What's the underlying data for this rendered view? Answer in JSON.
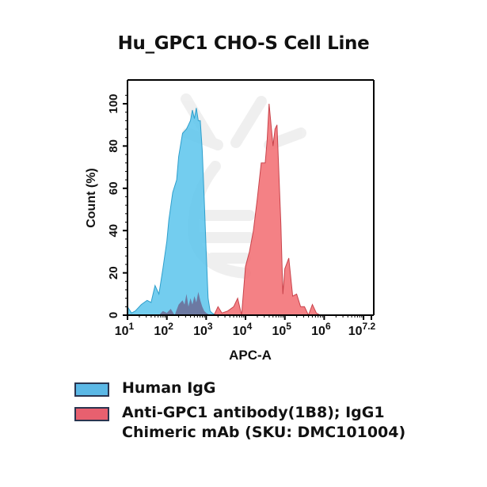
{
  "chart_data": {
    "type": "area",
    "title": "Hu_GPC1 CHO-S Cell Line",
    "xlabel": "APC-A",
    "ylabel": "Count  (%)",
    "xscale": "log",
    "xlim": [
      1,
      7.2
    ],
    "ylim": [
      0,
      108
    ],
    "x_tick_labels": [
      "10^1",
      "10^2",
      "10^3",
      "10^4",
      "10^5",
      "10^6",
      "10^7.2"
    ],
    "y_tick_labels": [
      "0",
      "20",
      "40",
      "60",
      "80",
      "100"
    ],
    "grid": false,
    "legend_position": "below",
    "series": [
      {
        "name": "Human IgG",
        "color": "#5bc4ec",
        "x_log10": [
          1.0,
          1.1,
          1.2,
          1.35,
          1.5,
          1.6,
          1.7,
          1.8,
          1.9,
          2.0,
          2.05,
          2.15,
          2.25,
          2.3,
          2.4,
          2.5,
          2.55,
          2.6,
          2.65,
          2.7,
          2.75,
          2.8,
          2.85,
          2.9,
          2.95,
          3.0,
          3.05,
          3.1,
          3.15,
          3.25
        ],
        "values": [
          4,
          1,
          2,
          5,
          7,
          6,
          14,
          10,
          22,
          35,
          45,
          58,
          64,
          75,
          86,
          88,
          90,
          92,
          97,
          93,
          98,
          92,
          92,
          78,
          55,
          30,
          8,
          2,
          1,
          0
        ]
      },
      {
        "name": "Anti-GPC1 antibody(1B8); IgG1 Chimeric mAb (SKU: DMC101004)",
        "color": "#f26b70",
        "x_log10": [
          3.2,
          3.3,
          3.4,
          3.55,
          3.7,
          3.8,
          3.9,
          4.0,
          4.1,
          4.2,
          4.3,
          4.4,
          4.5,
          4.55,
          4.6,
          4.7,
          4.75,
          4.8,
          4.85,
          4.9,
          4.95,
          5.0,
          5.1,
          5.2,
          5.3,
          5.4,
          5.5,
          5.6,
          5.7,
          5.8,
          5.9
        ],
        "values": [
          0,
          4,
          1,
          2,
          4,
          8,
          0,
          23,
          30,
          40,
          55,
          72,
          72,
          83,
          100,
          80,
          88,
          90,
          66,
          43,
          10,
          22,
          27,
          9,
          10,
          4,
          4,
          0,
          5,
          1,
          0
        ]
      }
    ]
  },
  "legend": {
    "items": [
      {
        "label": "Human IgG",
        "color": "#5bb8e6"
      },
      {
        "label": "Anti-GPC1 antibody(1B8); IgG1 Chimeric mAb (SKU: DMC101004)",
        "color": "#e8606f"
      }
    ]
  }
}
